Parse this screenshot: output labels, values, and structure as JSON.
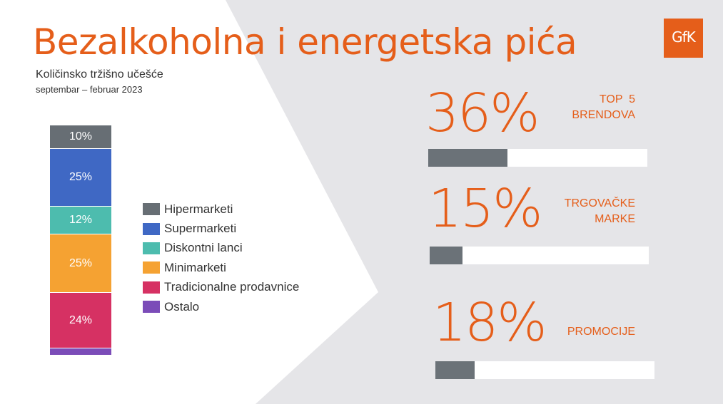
{
  "title": "Bezalkoholna i energetska pića",
  "subtitle": "Količinsko tržišno učešće",
  "period": "septembar – februar 2023",
  "logo_text": "GfK",
  "colors": {
    "accent": "#e55e1a",
    "bar_fill": "#6b7278",
    "background_gray": "#e5e5e8"
  },
  "chart_data": [
    {
      "type": "bar",
      "stacked": true,
      "categories": [
        "Hipermarketi",
        "Supermarketi",
        "Diskontni lanci",
        "Minimarketi",
        "Tradicionalne prodavnice",
        "Ostalo"
      ],
      "values": [
        10,
        25,
        12,
        25,
        24,
        3
      ],
      "labels": [
        "10%",
        "25%",
        "12%",
        "25%",
        "24%",
        ""
      ],
      "colors": [
        "#676e74",
        "#3f68c4",
        "#4dbcae",
        "#f5a232",
        "#d63163",
        "#7b4cb8"
      ]
    }
  ],
  "kpis": [
    {
      "value": "36%",
      "label_lines": [
        "TOP  5",
        "BRENDOVA"
      ],
      "fill": 0.36
    },
    {
      "value": "15%",
      "label_lines": [
        "TRGOVAČKE",
        "MARKE"
      ],
      "fill": 0.15
    },
    {
      "value": "18%",
      "label_lines": [
        "PROMOCIJE"
      ],
      "fill": 0.18
    }
  ]
}
